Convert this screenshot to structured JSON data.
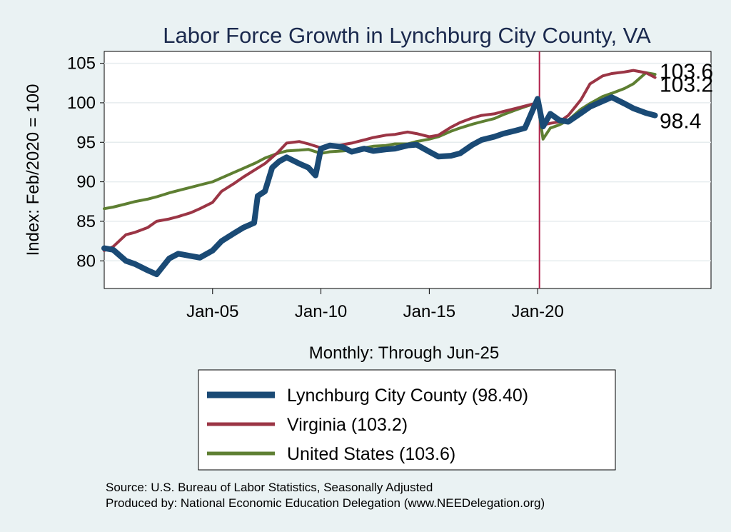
{
  "chart_data": {
    "type": "line",
    "title": "Labor Force Growth in Lynchburg City  County, VA",
    "ylabel": "Index: Feb/2020 = 100",
    "xlabel": "Monthly: Through Jun-25",
    "x_range": [
      "Jan-00",
      "Jun-25"
    ],
    "ylim": [
      76.5,
      106.5
    ],
    "yticks": [
      80,
      85,
      90,
      95,
      100,
      105
    ],
    "xticks": [
      {
        "date": "2005-01",
        "label": "Jan-05"
      },
      {
        "date": "2010-01",
        "label": "Jan-10"
      },
      {
        "date": "2015-01",
        "label": "Jan-15"
      },
      {
        "date": "2020-01",
        "label": "Jan-20"
      }
    ],
    "grid": true,
    "reference_line": {
      "date": "2020-02",
      "color": "#b0204a"
    },
    "legend_position": "bottom",
    "series": [
      {
        "name": "Lynchburg City  County (98.40)",
        "color": "#1a4a75",
        "width": 8,
        "points": [
          [
            "2000-01",
            81.6
          ],
          [
            "2000-06",
            81.4
          ],
          [
            "2001-01",
            80.0
          ],
          [
            "2001-06",
            79.6
          ],
          [
            "2002-01",
            78.8
          ],
          [
            "2002-06",
            78.3
          ],
          [
            "2003-01",
            80.3
          ],
          [
            "2003-06",
            80.9
          ],
          [
            "2004-01",
            80.6
          ],
          [
            "2004-06",
            80.4
          ],
          [
            "2005-01",
            81.3
          ],
          [
            "2005-06",
            82.5
          ],
          [
            "2006-01",
            83.5
          ],
          [
            "2006-06",
            84.2
          ],
          [
            "2006-12",
            84.8
          ],
          [
            "2007-02",
            88.2
          ],
          [
            "2007-06",
            88.8
          ],
          [
            "2007-10",
            91.8
          ],
          [
            "2008-02",
            92.6
          ],
          [
            "2008-06",
            93.1
          ],
          [
            "2009-01",
            92.3
          ],
          [
            "2009-06",
            91.8
          ],
          [
            "2009-10",
            90.8
          ],
          [
            "2010-01",
            94.2
          ],
          [
            "2010-06",
            94.6
          ],
          [
            "2011-01",
            94.4
          ],
          [
            "2011-06",
            93.8
          ],
          [
            "2012-01",
            94.2
          ],
          [
            "2012-06",
            93.9
          ],
          [
            "2013-01",
            94.1
          ],
          [
            "2013-06",
            94.2
          ],
          [
            "2014-01",
            94.6
          ],
          [
            "2014-06",
            94.7
          ],
          [
            "2015-01",
            93.8
          ],
          [
            "2015-06",
            93.2
          ],
          [
            "2016-01",
            93.3
          ],
          [
            "2016-06",
            93.6
          ],
          [
            "2017-01",
            94.7
          ],
          [
            "2017-06",
            95.3
          ],
          [
            "2018-01",
            95.7
          ],
          [
            "2018-06",
            96.1
          ],
          [
            "2019-01",
            96.5
          ],
          [
            "2019-06",
            96.8
          ],
          [
            "2020-01",
            100.5
          ],
          [
            "2020-04",
            97.0
          ],
          [
            "2020-08",
            98.6
          ],
          [
            "2021-01",
            97.8
          ],
          [
            "2021-06",
            97.6
          ],
          [
            "2022-01",
            98.7
          ],
          [
            "2022-06",
            99.5
          ],
          [
            "2023-01",
            100.2
          ],
          [
            "2023-06",
            100.7
          ],
          [
            "2024-01",
            99.9
          ],
          [
            "2024-06",
            99.3
          ],
          [
            "2025-01",
            98.7
          ],
          [
            "2025-06",
            98.4
          ]
        ]
      },
      {
        "name": "Virginia (103.2)",
        "color": "#9b3545",
        "width": 4,
        "points": [
          [
            "2000-01",
            81.3
          ],
          [
            "2000-06",
            81.8
          ],
          [
            "2001-01",
            83.3
          ],
          [
            "2001-06",
            83.6
          ],
          [
            "2002-01",
            84.2
          ],
          [
            "2002-06",
            85.0
          ],
          [
            "2003-01",
            85.3
          ],
          [
            "2003-06",
            85.6
          ],
          [
            "2004-01",
            86.1
          ],
          [
            "2004-06",
            86.6
          ],
          [
            "2005-01",
            87.4
          ],
          [
            "2005-06",
            88.8
          ],
          [
            "2006-01",
            89.8
          ],
          [
            "2006-06",
            90.6
          ],
          [
            "2007-01",
            91.6
          ],
          [
            "2007-06",
            92.3
          ],
          [
            "2008-01",
            93.7
          ],
          [
            "2008-06",
            94.9
          ],
          [
            "2009-01",
            95.1
          ],
          [
            "2009-06",
            94.8
          ],
          [
            "2010-01",
            94.3
          ],
          [
            "2010-06",
            94.4
          ],
          [
            "2011-01",
            94.7
          ],
          [
            "2011-06",
            94.9
          ],
          [
            "2012-01",
            95.3
          ],
          [
            "2012-06",
            95.6
          ],
          [
            "2013-01",
            95.9
          ],
          [
            "2013-06",
            96.0
          ],
          [
            "2014-01",
            96.3
          ],
          [
            "2014-06",
            96.1
          ],
          [
            "2015-01",
            95.7
          ],
          [
            "2015-06",
            95.9
          ],
          [
            "2016-01",
            96.9
          ],
          [
            "2016-06",
            97.5
          ],
          [
            "2017-01",
            98.1
          ],
          [
            "2017-06",
            98.4
          ],
          [
            "2018-01",
            98.6
          ],
          [
            "2018-06",
            98.9
          ],
          [
            "2019-01",
            99.3
          ],
          [
            "2019-06",
            99.6
          ],
          [
            "2020-01",
            100.0
          ],
          [
            "2020-04",
            97.2
          ],
          [
            "2020-08",
            97.4
          ],
          [
            "2021-01",
            97.6
          ],
          [
            "2021-06",
            98.4
          ],
          [
            "2022-01",
            100.4
          ],
          [
            "2022-06",
            102.4
          ],
          [
            "2023-01",
            103.4
          ],
          [
            "2023-06",
            103.7
          ],
          [
            "2024-01",
            103.9
          ],
          [
            "2024-06",
            104.1
          ],
          [
            "2025-01",
            103.8
          ],
          [
            "2025-06",
            103.2
          ]
        ]
      },
      {
        "name": "United States (103.6)",
        "color": "#5e7f32",
        "width": 4,
        "points": [
          [
            "2000-01",
            86.6
          ],
          [
            "2000-06",
            86.8
          ],
          [
            "2001-01",
            87.2
          ],
          [
            "2001-06",
            87.5
          ],
          [
            "2002-01",
            87.8
          ],
          [
            "2002-06",
            88.1
          ],
          [
            "2003-01",
            88.6
          ],
          [
            "2003-06",
            88.9
          ],
          [
            "2004-01",
            89.3
          ],
          [
            "2004-06",
            89.6
          ],
          [
            "2005-01",
            90.0
          ],
          [
            "2005-06",
            90.5
          ],
          [
            "2006-01",
            91.2
          ],
          [
            "2006-06",
            91.7
          ],
          [
            "2007-01",
            92.4
          ],
          [
            "2007-06",
            93.0
          ],
          [
            "2008-01",
            93.6
          ],
          [
            "2008-06",
            93.9
          ],
          [
            "2009-01",
            94.0
          ],
          [
            "2009-06",
            94.1
          ],
          [
            "2010-01",
            93.6
          ],
          [
            "2010-06",
            93.8
          ],
          [
            "2011-01",
            93.9
          ],
          [
            "2011-06",
            94.0
          ],
          [
            "2012-01",
            94.3
          ],
          [
            "2012-06",
            94.5
          ],
          [
            "2013-01",
            94.6
          ],
          [
            "2013-06",
            94.8
          ],
          [
            "2014-01",
            94.8
          ],
          [
            "2014-06",
            95.1
          ],
          [
            "2015-01",
            95.4
          ],
          [
            "2015-06",
            95.7
          ],
          [
            "2016-01",
            96.4
          ],
          [
            "2016-06",
            96.8
          ],
          [
            "2017-01",
            97.3
          ],
          [
            "2017-06",
            97.6
          ],
          [
            "2018-01",
            98.0
          ],
          [
            "2018-06",
            98.5
          ],
          [
            "2019-01",
            99.1
          ],
          [
            "2019-06",
            99.5
          ],
          [
            "2020-01",
            100.0
          ],
          [
            "2020-04",
            95.4
          ],
          [
            "2020-08",
            96.8
          ],
          [
            "2021-01",
            97.2
          ],
          [
            "2021-06",
            97.8
          ],
          [
            "2022-01",
            99.2
          ],
          [
            "2022-06",
            99.9
          ],
          [
            "2023-01",
            100.8
          ],
          [
            "2023-06",
            101.2
          ],
          [
            "2024-01",
            101.8
          ],
          [
            "2024-06",
            102.4
          ],
          [
            "2025-01",
            103.8
          ],
          [
            "2025-06",
            103.6
          ]
        ]
      }
    ],
    "end_labels": [
      {
        "label": "103.6",
        "value": 103.6
      },
      {
        "label": "103.2",
        "value": 103.2
      },
      {
        "label": "98.4",
        "value": 98.4
      }
    ]
  },
  "footer": {
    "source": "Source: U.S. Bureau of Labor Statistics, Seasonally Adjusted",
    "produced_by": "Produced by: National Economic Education Delegation (www.NEEDelegation.org)"
  }
}
